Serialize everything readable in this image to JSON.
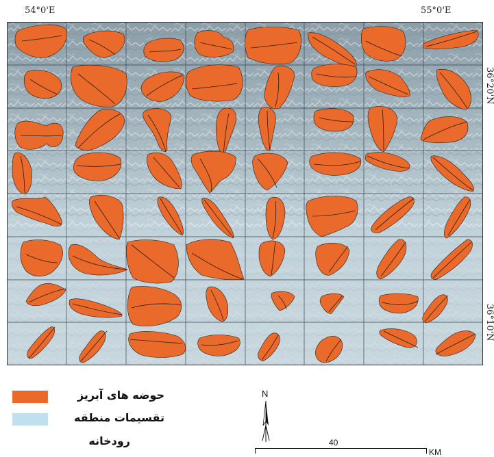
{
  "map": {
    "top_left_longitude": "54°0'E",
    "top_right_longitude": "55°0'E",
    "upper_right_latitude": "36°20'N",
    "lower_right_latitude": "36°10'N"
  },
  "layers": {
    "basin_color": "#ea6a2c",
    "basin_outline_color": "#2a1a10",
    "grid_color": "#3a4450",
    "background_color": "#c4d4dc"
  },
  "grid": {
    "columns": 8,
    "rows": 8
  },
  "legend": {
    "items": [
      {
        "label": "حوضه های آبریز",
        "color": "#ea6a2c"
      },
      {
        "label": "تقسیمات منطقه",
        "color": "#bfe0ee"
      },
      {
        "label": "رودخانه",
        "color": "#ffffff"
      }
    ]
  },
  "north_arrow": {
    "label": "N"
  },
  "scale_bar": {
    "value_label": "40",
    "unit_label": "KM"
  }
}
